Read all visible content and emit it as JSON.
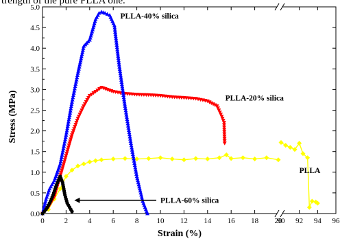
{
  "caption_fragment": "trength of the pure PLLA one.",
  "chart_data": {
    "type": "line",
    "title": "",
    "xlabel": "Strain (%)",
    "ylabel": "Stress (MPa)",
    "ylim": [
      0,
      5.0
    ],
    "y_ticks": [
      "0.0",
      "0.5",
      "1.0",
      "1.5",
      "2.0",
      "2.5",
      "3.0",
      "3.5",
      "4.0",
      "4.5",
      "5.0"
    ],
    "x_ticks_left": [
      "0",
      "2",
      "4",
      "6",
      "8",
      "10",
      "12",
      "14",
      "16",
      "18",
      "20"
    ],
    "x_ticks_right": [
      "90",
      "92",
      "94",
      "96"
    ],
    "x_break": true,
    "x_segments": [
      {
        "range": [
          0,
          20
        ]
      },
      {
        "range": [
          90,
          96
        ]
      }
    ],
    "grid": false,
    "legend": "none",
    "series": [
      {
        "name": "PLLA-40% silica",
        "color": "#0000ff",
        "marker": "triangle-up",
        "x": [
          0,
          0.3,
          0.6,
          1.0,
          1.5,
          2.0,
          2.5,
          3.0,
          3.5,
          4.0,
          4.5,
          4.8,
          5.0,
          5.3,
          5.7,
          6.1,
          6.5,
          7.0,
          7.5,
          8.0,
          8.5,
          8.9
        ],
        "y": [
          0,
          0.35,
          0.6,
          0.8,
          1.2,
          1.9,
          2.7,
          3.4,
          4.05,
          4.2,
          4.7,
          4.85,
          4.88,
          4.85,
          4.8,
          4.55,
          3.6,
          2.6,
          1.7,
          0.9,
          0.3,
          0.0
        ]
      },
      {
        "name": "PLLA-20% silica",
        "color": "#ff0000",
        "marker": "triangle-down",
        "x": [
          0,
          0.5,
          1.0,
          1.5,
          2.0,
          2.5,
          3.0,
          3.5,
          4.0,
          4.5,
          5.0,
          5.5,
          6.0,
          7.0,
          8.0,
          9.0,
          10.0,
          11.0,
          12.0,
          13.0,
          14.0,
          14.8,
          15.2,
          15.4,
          15.45
        ],
        "y": [
          0,
          0.15,
          0.4,
          0.9,
          1.4,
          1.9,
          2.3,
          2.6,
          2.85,
          2.95,
          3.05,
          3.0,
          2.95,
          2.9,
          2.88,
          2.87,
          2.85,
          2.82,
          2.8,
          2.78,
          2.72,
          2.6,
          2.35,
          2.2,
          1.7
        ]
      },
      {
        "name": "PLLA",
        "color": "#ffff00",
        "marker": "diamond",
        "segment_left": {
          "x": [
            0,
            0.5,
            1.0,
            1.5,
            2.0,
            2.5,
            3.0,
            3.5,
            4.0,
            4.5,
            5.0,
            6.0,
            7.0,
            8.0,
            9.0,
            10.0,
            11.0,
            12.0,
            13.0,
            14.0,
            15.0,
            15.6,
            16.0,
            17.0,
            18.0,
            19.0,
            20.0
          ],
          "y": [
            0,
            0.1,
            0.35,
            0.6,
            0.9,
            1.05,
            1.15,
            1.2,
            1.25,
            1.28,
            1.3,
            1.32,
            1.33,
            1.32,
            1.33,
            1.35,
            1.32,
            1.3,
            1.33,
            1.32,
            1.35,
            1.42,
            1.33,
            1.35,
            1.32,
            1.35,
            1.3
          ]
        },
        "segment_right": {
          "x": [
            90.0,
            90.5,
            91.0,
            91.5,
            92.0,
            92.4,
            92.9,
            93.1,
            93.4,
            93.8,
            94.0
          ],
          "y": [
            1.72,
            1.65,
            1.6,
            1.55,
            1.7,
            1.45,
            1.35,
            0.15,
            0.3,
            0.28,
            0.25
          ]
        }
      },
      {
        "name": "PLLA-60% silica",
        "color": "#000000",
        "marker": "circle",
        "x": [
          0,
          0.3,
          0.6,
          0.9,
          1.2,
          1.5,
          1.7,
          1.9,
          2.1,
          2.3,
          2.5
        ],
        "y": [
          0,
          0.1,
          0.25,
          0.45,
          0.7,
          0.9,
          0.75,
          0.45,
          0.25,
          0.15,
          0.05
        ]
      }
    ],
    "annotations": [
      {
        "text": "PLLA-40% silica",
        "at": [
          6.6,
          4.78
        ]
      },
      {
        "text": "PLLA-20% silica",
        "at": [
          15.5,
          2.8
        ]
      },
      {
        "text": "PLLA",
        "at": [
          92.0,
          1.05
        ]
      },
      {
        "text": "PLLA-60% silica",
        "at": [
          10.0,
          0.32
        ],
        "arrow_to": [
          2.7,
          0.32
        ]
      }
    ]
  }
}
